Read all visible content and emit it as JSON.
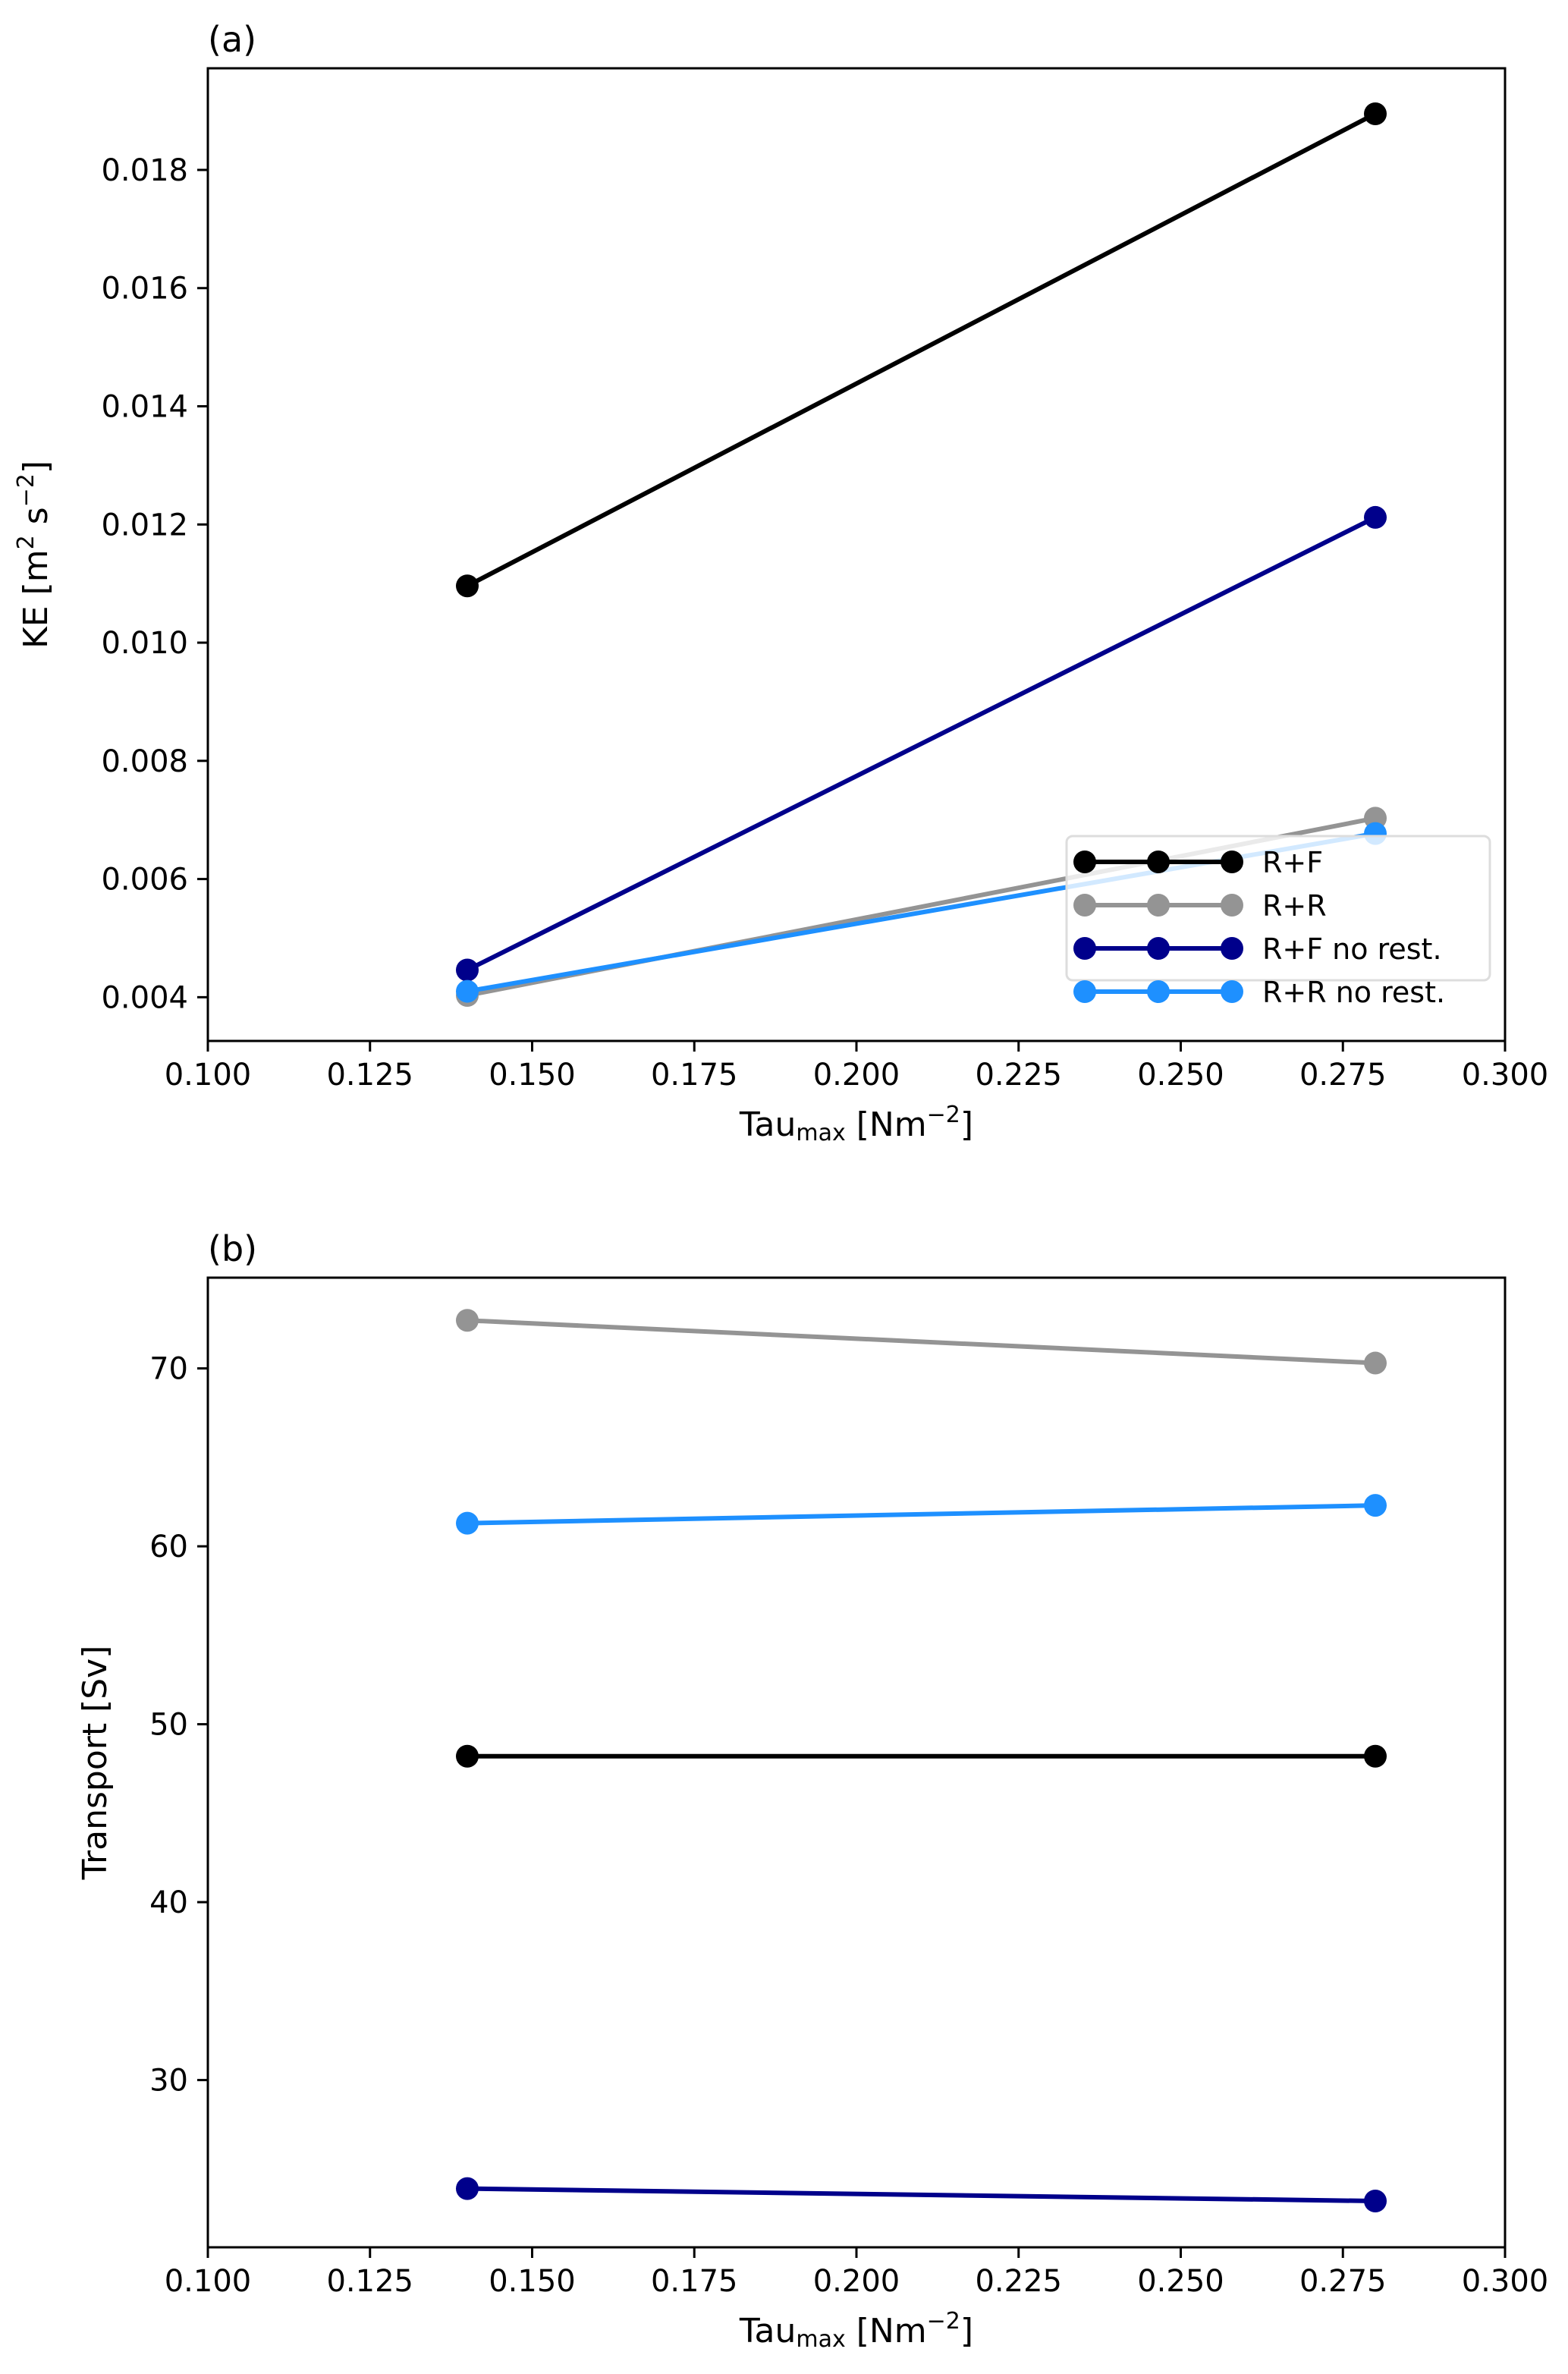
{
  "chart_data": [
    {
      "type": "line",
      "panel_label": "(a)",
      "xlabel_main": "Tau",
      "xlabel_sub": "max",
      "xlabel_unit": " [Nm",
      "xlabel_exp": "−2",
      "xlabel_close": "]",
      "ylabel_main": "KE [m",
      "ylabel_exp1": "2",
      "ylabel_mid": " s",
      "ylabel_exp2": "−2",
      "ylabel_close": "]",
      "xlim": [
        0.1,
        0.3
      ],
      "ylim": [
        0.00326,
        0.01972
      ],
      "xticks": [
        "0.100",
        "0.125",
        "0.150",
        "0.175",
        "0.200",
        "0.225",
        "0.250",
        "0.275",
        "0.300"
      ],
      "yticks": [
        "0.004",
        "0.006",
        "0.008",
        "0.010",
        "0.012",
        "0.014",
        "0.016",
        "0.018"
      ],
      "x": [
        0.14,
        0.28
      ],
      "legend_position": "lower-right",
      "series": [
        {
          "name": "R+F",
          "color": "#000000",
          "values": [
            0.01096,
            0.01895
          ]
        },
        {
          "name": "R+R",
          "color": "#949494",
          "values": [
            0.00403,
            0.00703
          ]
        },
        {
          "name": "R+F no rest.",
          "color": "#00008b",
          "values": [
            0.00446,
            0.01212
          ]
        },
        {
          "name": "R+R no rest.",
          "color": "#1e90ff",
          "values": [
            0.0041,
            0.00677
          ]
        }
      ]
    },
    {
      "type": "line",
      "panel_label": "(b)",
      "xlabel_main": "Tau",
      "xlabel_sub": "max",
      "xlabel_unit": " [Nm",
      "xlabel_exp": "−2",
      "xlabel_close": "]",
      "ylabel": "Transport [Sv]",
      "xlim": [
        0.1,
        0.3
      ],
      "ylim": [
        20.6,
        75.1
      ],
      "xticks": [
        "0.100",
        "0.125",
        "0.150",
        "0.175",
        "0.200",
        "0.225",
        "0.250",
        "0.275",
        "0.300"
      ],
      "yticks": [
        "30",
        "40",
        "50",
        "60",
        "70"
      ],
      "x": [
        0.14,
        0.28
      ],
      "series": [
        {
          "name": "R+F",
          "color": "#000000",
          "values": [
            48.2,
            48.2
          ]
        },
        {
          "name": "R+R",
          "color": "#949494",
          "values": [
            72.7,
            70.3
          ]
        },
        {
          "name": "R+F no rest.",
          "color": "#00008b",
          "values": [
            23.9,
            23.2
          ]
        },
        {
          "name": "R+R no rest.",
          "color": "#1e90ff",
          "values": [
            61.3,
            62.3
          ]
        }
      ]
    }
  ]
}
